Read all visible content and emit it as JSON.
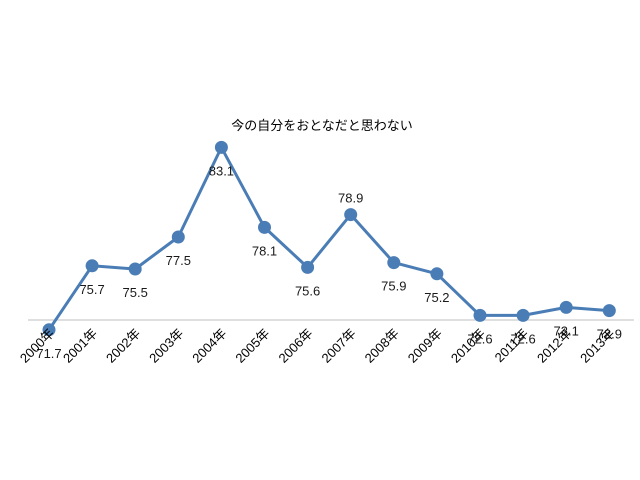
{
  "chart_data": {
    "type": "line",
    "title": "今の自分をおとなだと思わない",
    "xlabel": "",
    "ylabel": "",
    "categories": [
      "2000年",
      "2001年",
      "2002年",
      "2003年",
      "2004年",
      "2005年",
      "2006年",
      "2007年",
      "2008年",
      "2009年",
      "2010年",
      "2011年",
      "2012年",
      "2013年"
    ],
    "series": [
      {
        "values": [
          71.7,
          75.7,
          75.5,
          77.5,
          83.1,
          78.1,
          75.6,
          78.9,
          75.9,
          75.2,
          72.6,
          72.6,
          73.1,
          72.9
        ],
        "labels": [
          "71.7",
          "75.7",
          "75.5",
          "77.5",
          "83.1",
          "78.1",
          "75.6",
          "78.9",
          "75.9",
          "75.2",
          "72.6",
          "72.6",
          "73.1",
          "72.9"
        ],
        "label_position": [
          "below",
          "below",
          "below",
          "below",
          "below",
          "below",
          "below",
          "above",
          "below",
          "below",
          "below",
          "below",
          "below",
          "below"
        ],
        "color": "#4a7db5"
      }
    ],
    "ylim": [
      64,
      88
    ],
    "grid": false,
    "legend": "none"
  }
}
